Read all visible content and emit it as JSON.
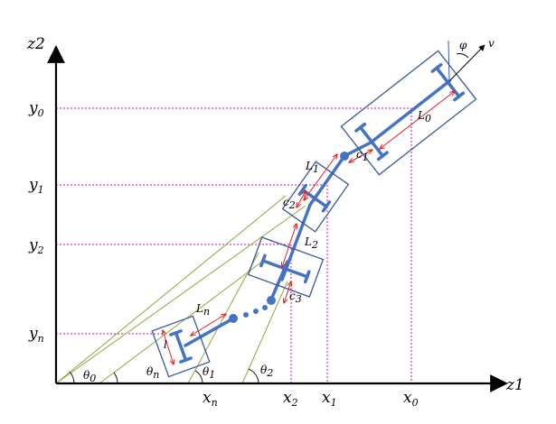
{
  "axes": {
    "x_label": "z1",
    "y_label": "z2",
    "x_ticks": [
      {
        "base": "x",
        "sub": "n"
      },
      {
        "base": "x",
        "sub": "2"
      },
      {
        "base": "x",
        "sub": "1"
      },
      {
        "base": "x",
        "sub": "0"
      }
    ],
    "y_ticks": [
      {
        "base": "y",
        "sub": "0"
      },
      {
        "base": "y",
        "sub": "1"
      },
      {
        "base": "y",
        "sub": "2"
      },
      {
        "base": "y",
        "sub": "n"
      }
    ]
  },
  "angles": [
    {
      "base": "θ",
      "sub": "0"
    },
    {
      "base": "θ",
      "sub": "n"
    },
    {
      "base": "θ",
      "sub": "1"
    },
    {
      "base": "θ",
      "sub": "2"
    }
  ],
  "lengths": [
    {
      "base": "L",
      "sub": "0"
    },
    {
      "base": "L",
      "sub": "1"
    },
    {
      "base": "L",
      "sub": "2"
    },
    {
      "base": "L",
      "sub": "n"
    }
  ],
  "offsets": [
    {
      "base": "c",
      "sub": "1"
    },
    {
      "base": "c",
      "sub": "2"
    },
    {
      "base": "c",
      "sub": "3"
    }
  ],
  "width_label": "l",
  "steer_label": "φ",
  "velocity_label": "v",
  "colors": {
    "body": "#3a5a9a",
    "link": "#4472c4",
    "guide": "#e000c0",
    "measure": "#e02020",
    "ray": "#8faa3c",
    "axis": "#000000"
  }
}
